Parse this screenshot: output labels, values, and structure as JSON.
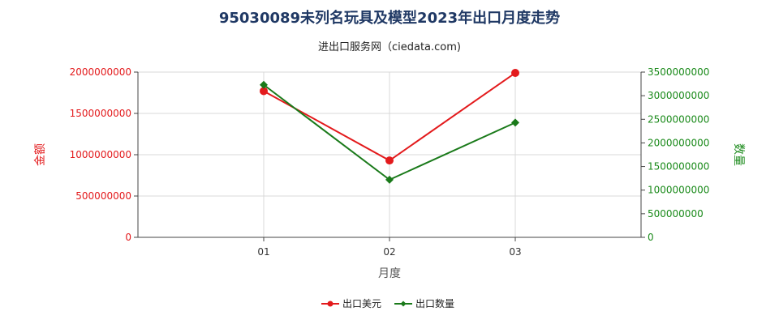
{
  "chart_data": {
    "type": "line",
    "title": "95030089未列名玩具及模型2023年出口月度走势",
    "subtitle": "进出口服务网（ciedata.com)",
    "xlabel": "月度",
    "ylabel_left": "金额",
    "ylabel_right": "数量",
    "categories": [
      "01",
      "02",
      "03"
    ],
    "y_left": {
      "range": [
        0,
        2000000000
      ],
      "ticks": [
        "0",
        "500000000",
        "1000000000",
        "1500000000",
        "2000000000"
      ],
      "color": "#e31a1c"
    },
    "y_right": {
      "range": [
        0,
        3500000000
      ],
      "ticks": [
        "0",
        "500000000",
        "1000000000",
        "1500000000",
        "2000000000",
        "2500000000",
        "3000000000",
        "3500000000"
      ],
      "color": "#1a8a1a"
    },
    "series": [
      {
        "name": "出口美元",
        "axis": "left",
        "color": "#e31a1c",
        "marker": "circle",
        "values": [
          1770000000,
          930000000,
          1990000000
        ]
      },
      {
        "name": "出口数量",
        "axis": "right",
        "color": "#1a7a1a",
        "marker": "diamond",
        "values": [
          3230000000,
          1220000000,
          2430000000
        ]
      }
    ],
    "grid": true,
    "legend_position": "bottom"
  }
}
